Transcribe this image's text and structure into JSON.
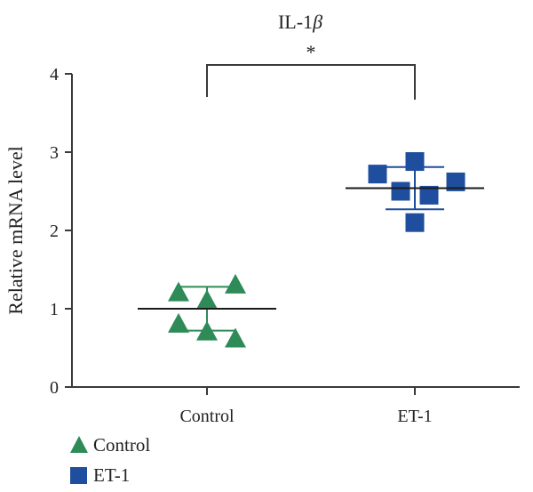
{
  "chart_data": {
    "type": "scatter",
    "title_prefix": "IL-1",
    "title_symbol": "β",
    "ylabel": "Relative mRNA level",
    "xlabel": "",
    "ylim": [
      0,
      4
    ],
    "yticks": [
      "0",
      "1",
      "2",
      "3",
      "4"
    ],
    "categories": [
      "Control",
      "ET-1"
    ],
    "significance": "*",
    "series": [
      {
        "name": "Control",
        "marker": "triangle",
        "color": "#2e8b57",
        "values": [
          1.22,
          1.12,
          1.32,
          0.82,
          0.72,
          0.63
        ],
        "mean": 1.0,
        "sd_upper": 1.28,
        "sd_lower": 0.72
      },
      {
        "name": "ET-1",
        "marker": "square",
        "color": "#1f4e9e",
        "values": [
          2.72,
          2.88,
          2.5,
          2.45,
          2.62,
          2.1
        ],
        "mean": 2.54,
        "sd_upper": 2.81,
        "sd_lower": 2.27
      }
    ],
    "legend_position": "bottom-left",
    "grid": false
  }
}
